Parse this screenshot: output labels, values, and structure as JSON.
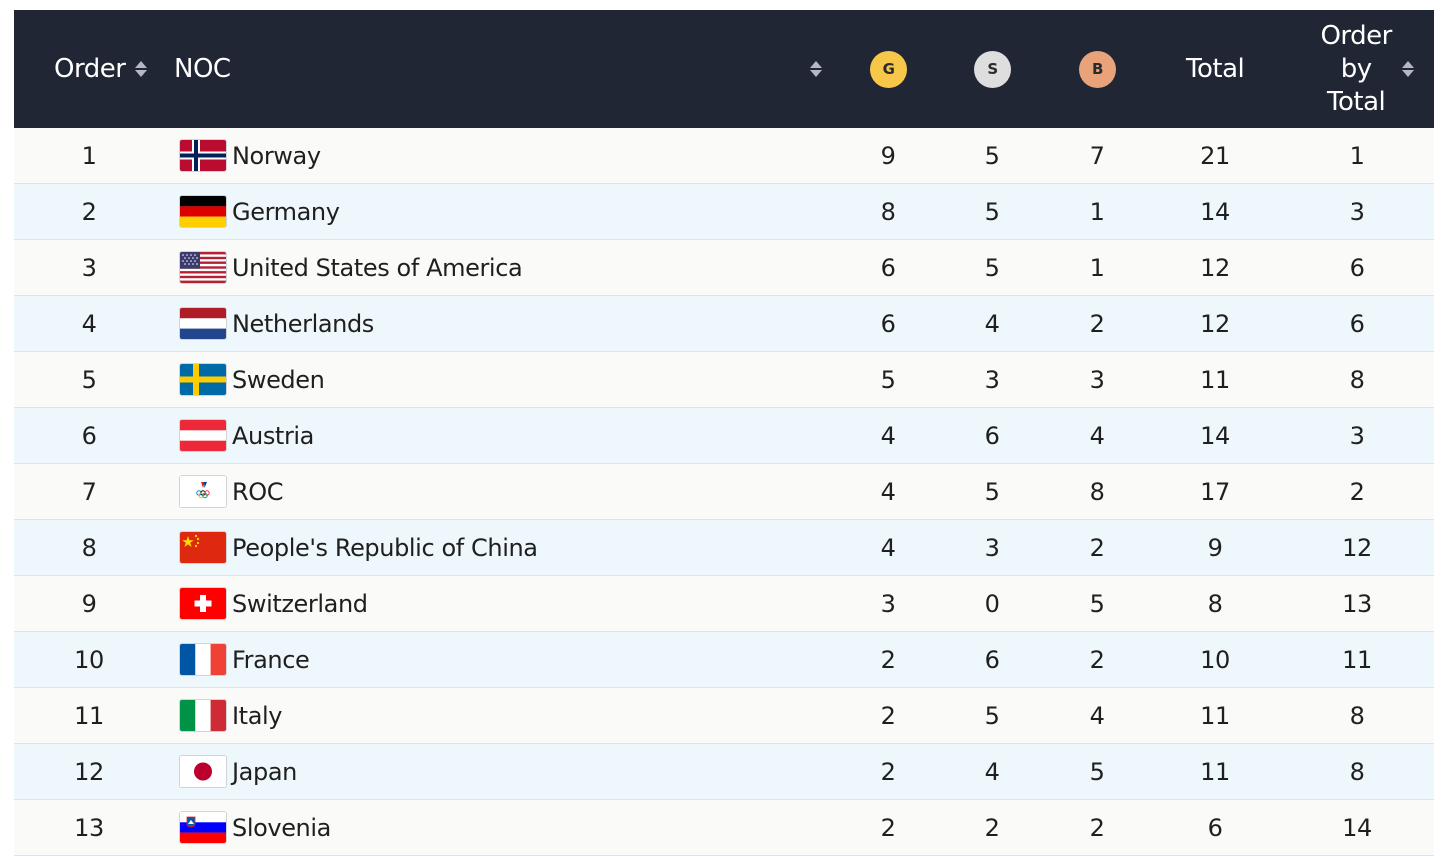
{
  "header": {
    "order": "Order",
    "noc": "NOC",
    "gold": "G",
    "silver": "S",
    "bronze": "B",
    "total": "Total",
    "order_by_total_line1": "Order",
    "order_by_total_line2": "by",
    "order_by_total_line3": "Total"
  },
  "colors": {
    "header_bg": "#212634",
    "gold": "#f7c74a",
    "silver": "#dedede",
    "bronze": "#e8a37a",
    "row_alt": "#eef7fb"
  },
  "rows": [
    {
      "order": "1",
      "country": "Norway",
      "flag": "norway",
      "gold": "9",
      "silver": "5",
      "bronze": "7",
      "total": "21",
      "order_by_total": "1"
    },
    {
      "order": "2",
      "country": "Germany",
      "flag": "germany",
      "gold": "8",
      "silver": "5",
      "bronze": "1",
      "total": "14",
      "order_by_total": "3"
    },
    {
      "order": "3",
      "country": "United States of America",
      "flag": "usa",
      "gold": "6",
      "silver": "5",
      "bronze": "1",
      "total": "12",
      "order_by_total": "6"
    },
    {
      "order": "4",
      "country": "Netherlands",
      "flag": "netherlands",
      "gold": "6",
      "silver": "4",
      "bronze": "2",
      "total": "12",
      "order_by_total": "6"
    },
    {
      "order": "5",
      "country": "Sweden",
      "flag": "sweden",
      "gold": "5",
      "silver": "3",
      "bronze": "3",
      "total": "11",
      "order_by_total": "8"
    },
    {
      "order": "6",
      "country": "Austria",
      "flag": "austria",
      "gold": "4",
      "silver": "6",
      "bronze": "4",
      "total": "14",
      "order_by_total": "3"
    },
    {
      "order": "7",
      "country": "ROC",
      "flag": "roc",
      "gold": "4",
      "silver": "5",
      "bronze": "8",
      "total": "17",
      "order_by_total": "2"
    },
    {
      "order": "8",
      "country": "People's Republic of China",
      "flag": "china",
      "gold": "4",
      "silver": "3",
      "bronze": "2",
      "total": "9",
      "order_by_total": "12"
    },
    {
      "order": "9",
      "country": "Switzerland",
      "flag": "switzerland",
      "gold": "3",
      "silver": "0",
      "bronze": "5",
      "total": "8",
      "order_by_total": "13"
    },
    {
      "order": "10",
      "country": "France",
      "flag": "france",
      "gold": "2",
      "silver": "6",
      "bronze": "2",
      "total": "10",
      "order_by_total": "11"
    },
    {
      "order": "11",
      "country": "Italy",
      "flag": "italy",
      "gold": "2",
      "silver": "5",
      "bronze": "4",
      "total": "11",
      "order_by_total": "8"
    },
    {
      "order": "12",
      "country": "Japan",
      "flag": "japan",
      "gold": "2",
      "silver": "4",
      "bronze": "5",
      "total": "11",
      "order_by_total": "8"
    },
    {
      "order": "13",
      "country": "Slovenia",
      "flag": "slovenia",
      "gold": "2",
      "silver": "2",
      "bronze": "2",
      "total": "6",
      "order_by_total": "14"
    }
  ]
}
